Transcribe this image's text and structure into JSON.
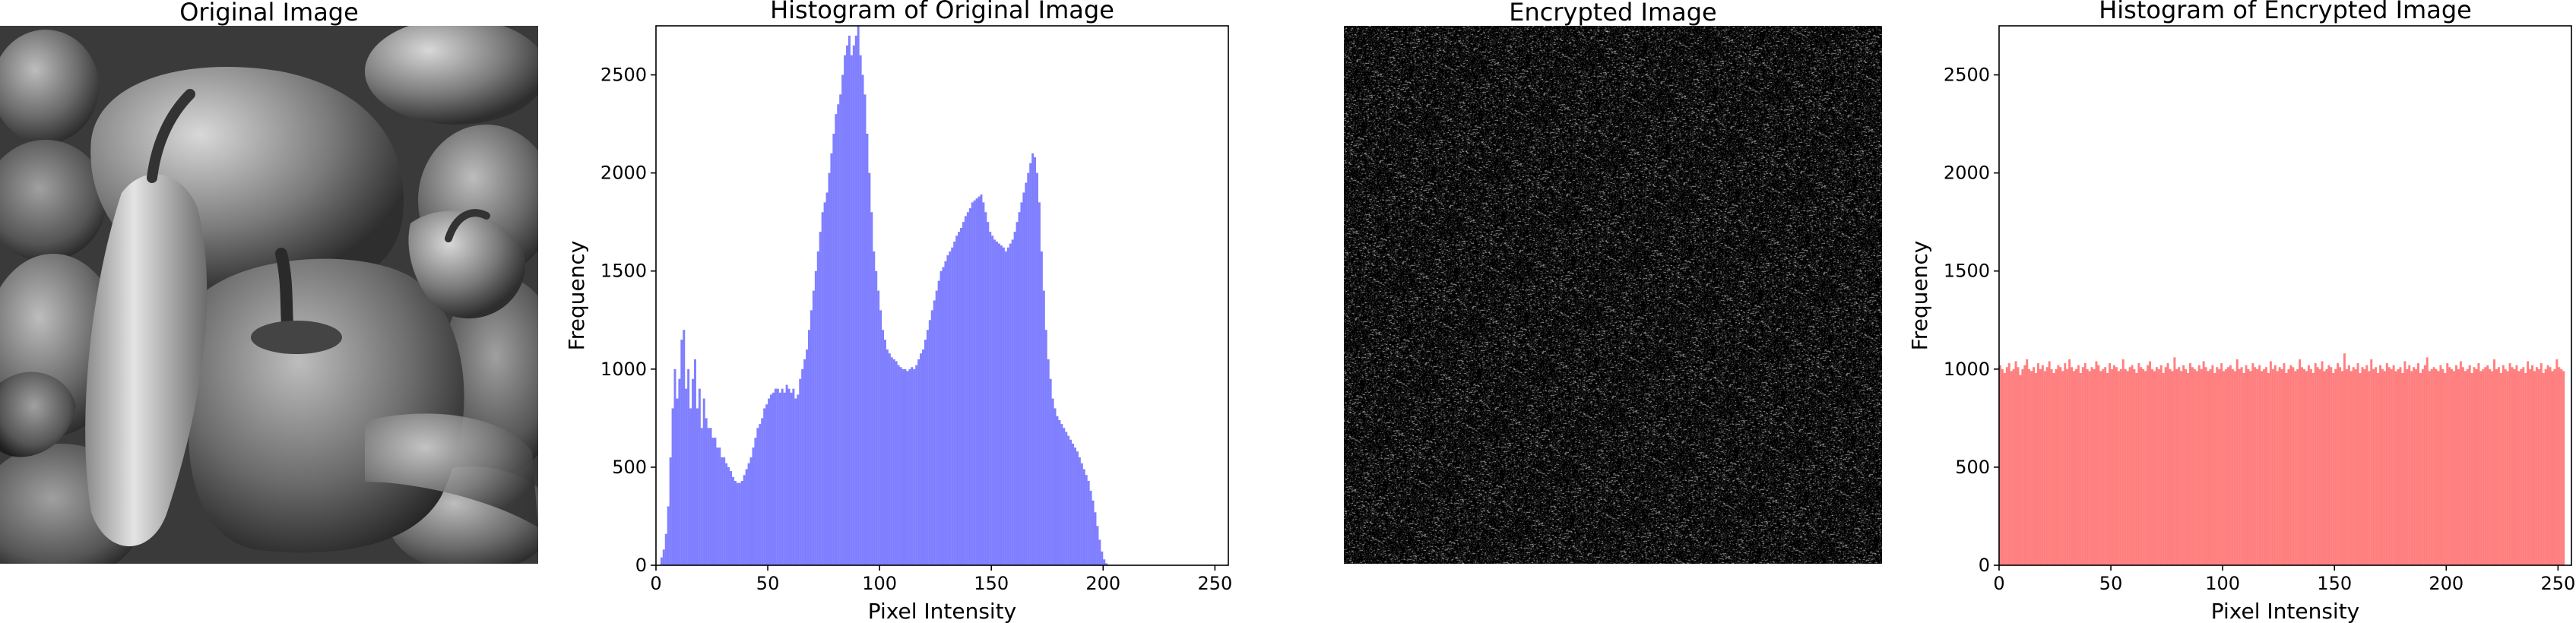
{
  "panels": {
    "original": {
      "title": "Original Image",
      "icon": "peppers-grayscale-photo"
    },
    "encrypted": {
      "title": "Encrypted Image",
      "icon": "random-noise-image"
    }
  },
  "chart_data": [
    {
      "type": "bar",
      "title": "Histogram of Original Image",
      "xlabel": "Pixel Intensity",
      "ylabel": "Frequency",
      "xlim": [
        0,
        256
      ],
      "ylim": [
        0,
        2750
      ],
      "xticks": [
        0,
        50,
        100,
        150,
        200,
        250
      ],
      "yticks": [
        0,
        500,
        1000,
        1500,
        2000,
        2500
      ],
      "color": "#0000ff",
      "bar_opacity": 0.5,
      "bins": 256,
      "values": [
        0,
        0,
        40,
        80,
        160,
        300,
        550,
        800,
        1000,
        850,
        950,
        1150,
        1200,
        900,
        1000,
        800,
        950,
        1050,
        800,
        900,
        700,
        850,
        750,
        700,
        700,
        650,
        650,
        600,
        600,
        550,
        550,
        520,
        500,
        480,
        450,
        430,
        420,
        420,
        430,
        460,
        490,
        520,
        550,
        600,
        650,
        700,
        720,
        750,
        800,
        820,
        850,
        870,
        880,
        900,
        900,
        880,
        900,
        880,
        920,
        900,
        880,
        900,
        850,
        870,
        950,
        1000,
        1050,
        1100,
        1200,
        1300,
        1400,
        1500,
        1600,
        1700,
        1800,
        1850,
        1900,
        2000,
        2100,
        2200,
        2300,
        2350,
        2400,
        2500,
        2600,
        2650,
        2700,
        2600,
        2650,
        2700,
        2750,
        2600,
        2500,
        2400,
        2200,
        2000,
        1800,
        1600,
        1500,
        1400,
        1300,
        1200,
        1150,
        1100,
        1080,
        1060,
        1050,
        1040,
        1020,
        1010,
        1000,
        1000,
        990,
        1000,
        1010,
        1000,
        1020,
        1050,
        1080,
        1100,
        1150,
        1200,
        1250,
        1300,
        1350,
        1400,
        1450,
        1500,
        1520,
        1550,
        1580,
        1600,
        1620,
        1650,
        1680,
        1700,
        1720,
        1750,
        1780,
        1800,
        1820,
        1850,
        1860,
        1870,
        1880,
        1890,
        1850,
        1800,
        1750,
        1700,
        1680,
        1660,
        1650,
        1640,
        1630,
        1620,
        1600,
        1620,
        1640,
        1660,
        1700,
        1750,
        1800,
        1850,
        1900,
        1950,
        2000,
        2050,
        2100,
        2080,
        2000,
        1850,
        1600,
        1400,
        1200,
        1050,
        950,
        850,
        800,
        760,
        740,
        720,
        700,
        680,
        660,
        640,
        620,
        600,
        580,
        550,
        520,
        490,
        460,
        430,
        380,
        330,
        270,
        200,
        130,
        70,
        30,
        10,
        2,
        0,
        0,
        0,
        0,
        0,
        0,
        0,
        0,
        0,
        0,
        0,
        0,
        0,
        0,
        0,
        0,
        0,
        0,
        0,
        0,
        0,
        0,
        0,
        0,
        0,
        0,
        0,
        0,
        0,
        0,
        0,
        0,
        0,
        0,
        0,
        0,
        0,
        0,
        0,
        0,
        0,
        0,
        0,
        0,
        0,
        0,
        0,
        0,
        0,
        0,
        0,
        0,
        0,
        0,
        0,
        0
      ]
    },
    {
      "type": "bar",
      "title": "Histogram of Encrypted Image",
      "xlabel": "Pixel Intensity",
      "ylabel": "Frequency",
      "xlim": [
        0,
        256
      ],
      "ylim": [
        0,
        2750
      ],
      "xticks": [
        0,
        50,
        100,
        150,
        200,
        250
      ],
      "yticks": [
        0,
        500,
        1000,
        1500,
        2000,
        2500
      ],
      "color": "#ff0000",
      "bar_opacity": 0.5,
      "bins": 256,
      "values": [
        1020,
        1000,
        980,
        1010,
        1030,
        990,
        1000,
        1040,
        1010,
        970,
        1000,
        1020,
        1050,
        1000,
        990,
        1010,
        980,
        1030,
        1000,
        1020,
        990,
        1010,
        1040,
        1000,
        980,
        1000,
        1020,
        1010,
        990,
        1030,
        1000,
        1050,
        1010,
        990,
        1000,
        1020,
        980,
        1010,
        1030,
        1000,
        990,
        1010,
        1000,
        1040,
        1020,
        990,
        1000,
        1010,
        980,
        1030,
        1000,
        1020,
        1010,
        990,
        1000,
        1050,
        1000,
        990,
        1010,
        1020,
        1000,
        980,
        1030,
        1010,
        1000,
        990,
        1020,
        1040,
        1000,
        990,
        1010,
        1000,
        1020,
        980,
        1010,
        1030,
        1000,
        990,
        1060,
        1000,
        1010,
        990,
        1020,
        1000,
        980,
        1030,
        1010,
        1000,
        990,
        1020,
        1000,
        1040,
        1010,
        990,
        1000,
        1020,
        980,
        1010,
        1000,
        1030,
        990,
        1000,
        1010,
        1020,
        1000,
        990,
        1050,
        1000,
        1010,
        980,
        1020,
        1000,
        990,
        1030,
        1010,
        1000,
        1020,
        990,
        1000,
        1010,
        980,
        1040,
        1000,
        1020,
        990,
        1010,
        1000,
        1030,
        980,
        1000,
        1020,
        1010,
        990,
        1000,
        1050,
        1010,
        1000,
        990,
        1020,
        1000,
        980,
        1030,
        1010,
        1000,
        1040,
        990,
        1000,
        1020,
        1010,
        980,
        1000,
        1030,
        1010,
        990,
        1080,
        1000,
        1020,
        990,
        1010,
        1000,
        1030,
        980,
        1010,
        1000,
        1020,
        990,
        1050,
        1000,
        1010,
        980,
        1020,
        1000,
        990,
        1030,
        1010,
        1000,
        1020,
        990,
        1000,
        1010,
        980,
        1040,
        1000,
        1020,
        990,
        1010,
        1000,
        1030,
        980,
        1000,
        1020,
        1060,
        990,
        1000,
        1010,
        1000,
        990,
        1020,
        1000,
        980,
        1030,
        1010,
        1000,
        990,
        1020,
        1000,
        1040,
        1010,
        990,
        1000,
        1020,
        980,
        1010,
        1000,
        1030,
        990,
        1000,
        1010,
        1020,
        1000,
        990,
        1050,
        1000,
        1010,
        980,
        1020,
        1000,
        990,
        1030,
        1010,
        1000,
        1020,
        990,
        1000,
        1010,
        980,
        1040,
        1000,
        1020,
        990,
        1010,
        1000,
        1030,
        980,
        1000,
        1020,
        1010,
        990,
        1000,
        1050,
        1010,
        1000,
        990
      ]
    }
  ]
}
